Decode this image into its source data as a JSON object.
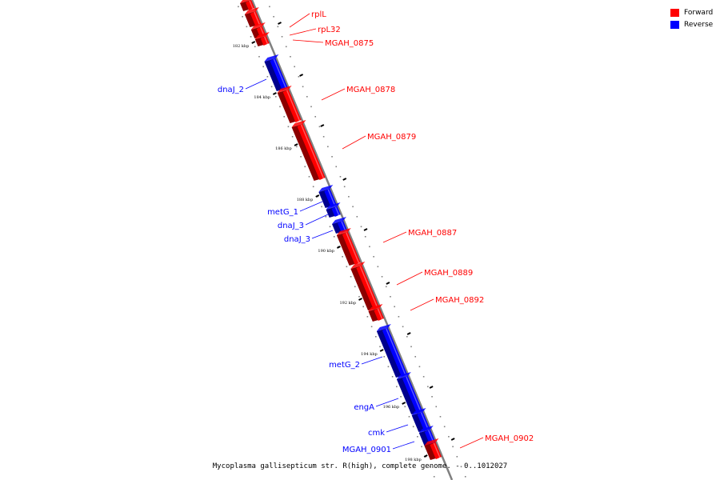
{
  "legend": [
    {
      "label": "Forward",
      "color": "#ff0000"
    },
    {
      "label": "Reverse",
      "color": "#0000ff"
    }
  ],
  "caption": "Mycoplasma gallisepticum str. R(high), complete genome. - 0..1012027",
  "colors": {
    "forward": "#ff0000",
    "reverse": "#0000ff",
    "backbone": "#808080"
  },
  "scale_ticks": [
    "182 kbp",
    "184 kbp",
    "186 kbp",
    "188 kbp",
    "190 kbp",
    "192 kbp",
    "194 kbp",
    "196 kbp",
    "198 kbp"
  ],
  "genes": [
    {
      "id": "g0",
      "strand": "forward"
    },
    {
      "id": "rplL",
      "label": "rplL",
      "strand": "forward"
    },
    {
      "id": "rpL32",
      "label": "rpL32",
      "strand": "forward"
    },
    {
      "id": "MGAH_0875",
      "label": "MGAH_0875",
      "strand": "forward"
    },
    {
      "id": "dnaJ_2",
      "label": "dnaJ_2",
      "strand": "reverse"
    },
    {
      "id": "MGAH_0878",
      "label": "MGAH_0878",
      "strand": "forward"
    },
    {
      "id": "MGAH_0879",
      "label": "MGAH_0879",
      "strand": "forward"
    },
    {
      "id": "metG_1",
      "label": "metG_1",
      "strand": "reverse"
    },
    {
      "id": "dnaJ_3a",
      "label": "dnaJ_3",
      "strand": "reverse"
    },
    {
      "id": "dnaJ_3b",
      "label": "dnaJ_3",
      "strand": "reverse"
    },
    {
      "id": "MGAH_0887",
      "label": "MGAH_0887",
      "strand": "forward"
    },
    {
      "id": "MGAH_0889",
      "label": "MGAH_0889",
      "strand": "forward"
    },
    {
      "id": "MGAH_0892",
      "label": "MGAH_0892",
      "strand": "forward"
    },
    {
      "id": "metG_2",
      "label": "metG_2",
      "strand": "reverse"
    },
    {
      "id": "engA",
      "label": "engA",
      "strand": "reverse"
    },
    {
      "id": "cmk",
      "label": "cmk",
      "strand": "reverse"
    },
    {
      "id": "MGAH_0901",
      "label": "MGAH_0901",
      "strand": "reverse"
    },
    {
      "id": "MGAH_0902",
      "label": "MGAH_0902",
      "strand": "forward"
    }
  ]
}
